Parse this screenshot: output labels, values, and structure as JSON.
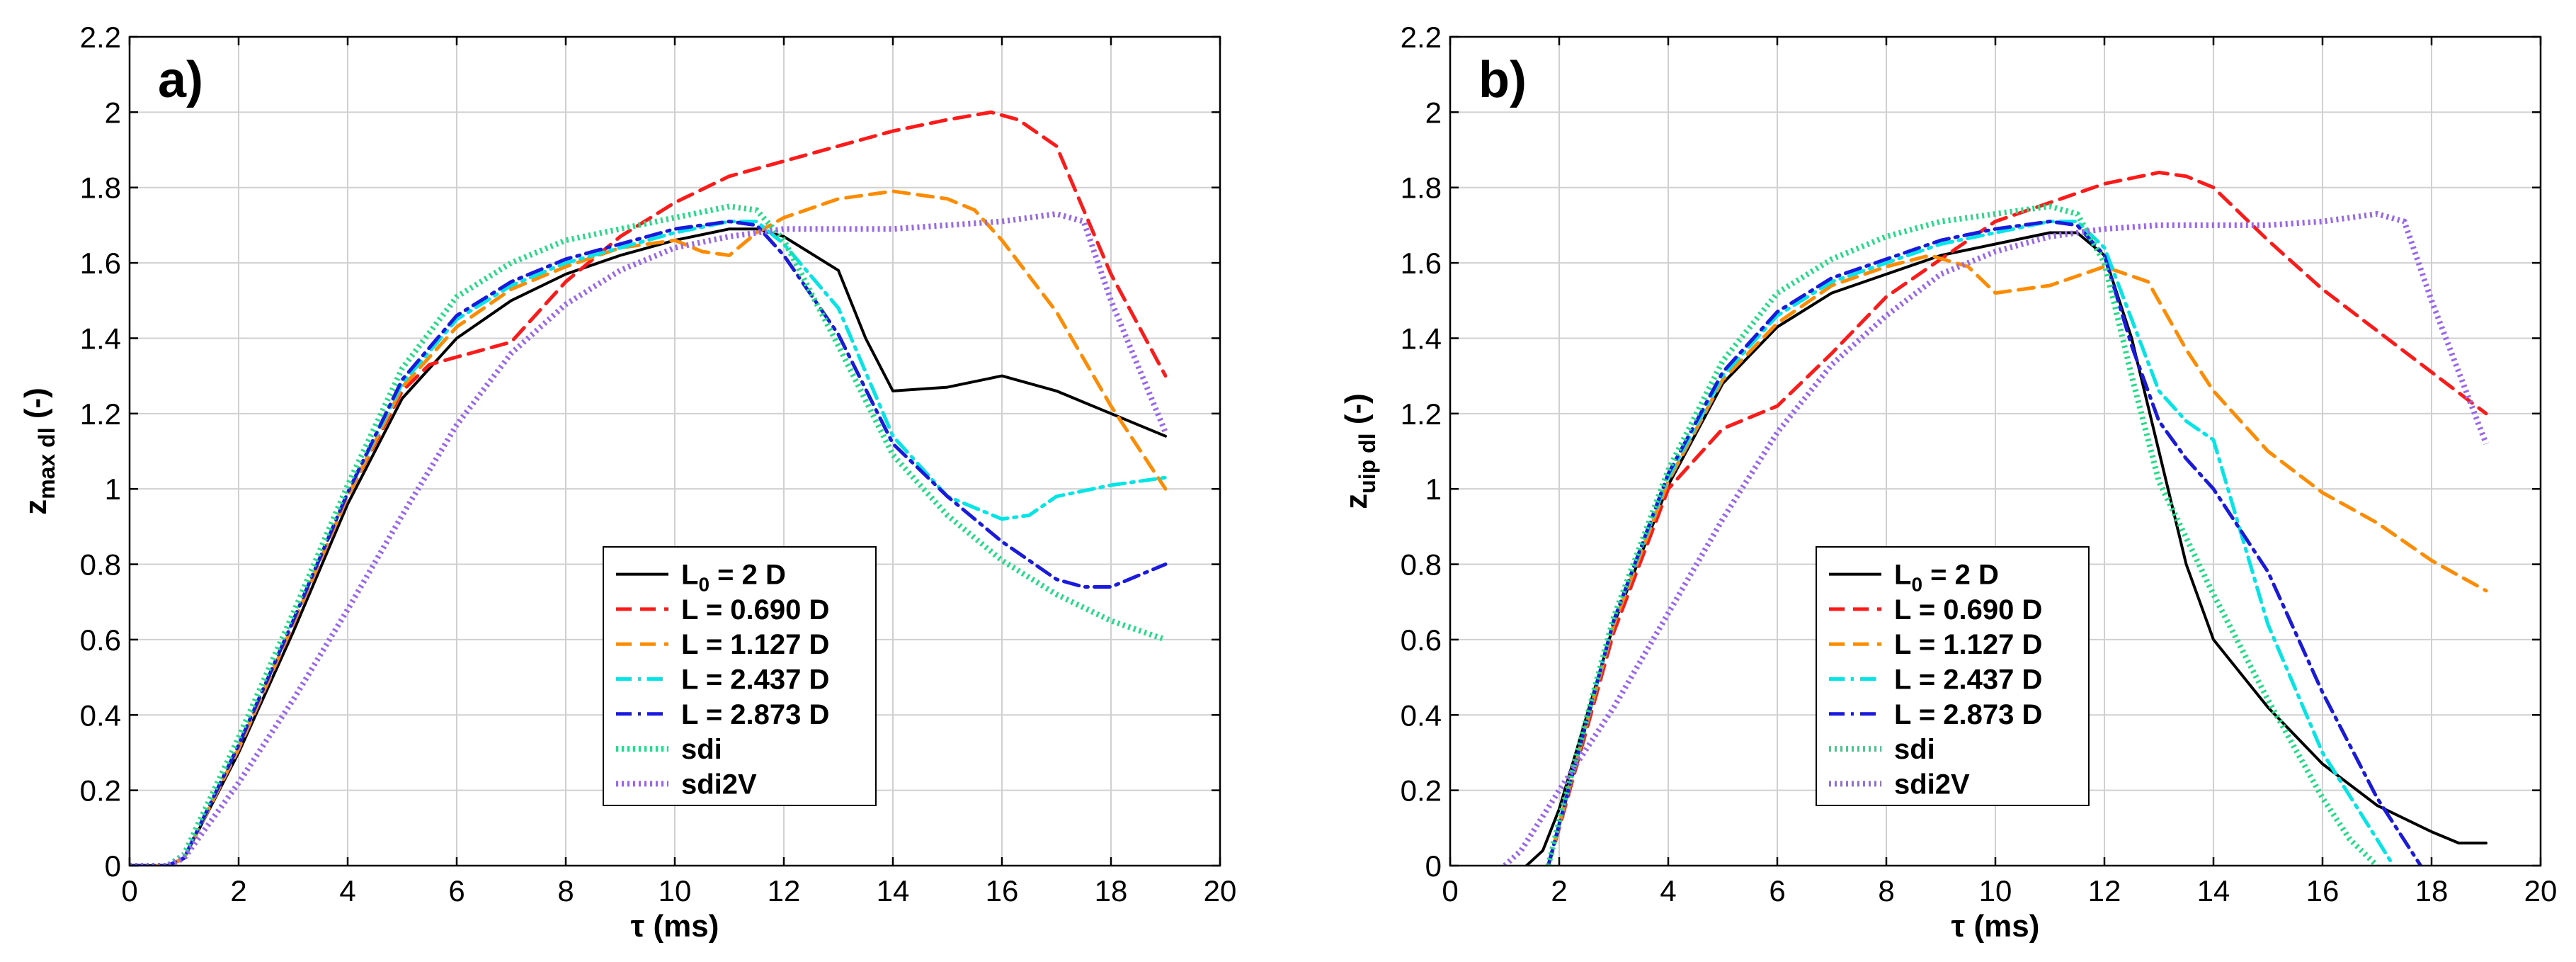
{
  "chart_data": [
    {
      "type": "line",
      "panel_label": "a)",
      "xlabel": "τ (ms)",
      "ylabel_main": "z",
      "ylabel_sub": "max dl",
      "ylabel_suffix": " (-)",
      "xlim": [
        0,
        20
      ],
      "ylim": [
        0,
        2.2
      ],
      "xticks": [
        "0",
        "2",
        "4",
        "6",
        "8",
        "10",
        "12",
        "14",
        "16",
        "18",
        "20"
      ],
      "yticks": [
        "0",
        "0.2",
        "0.4",
        "0.6",
        "0.8",
        "1",
        "1.2",
        "1.4",
        "1.6",
        "1.8",
        "2",
        "2.2"
      ],
      "grid": true,
      "legend_position": "bottom-center",
      "series": [
        {
          "name": "L0 = 2 D",
          "label_main": "L",
          "label_sub": "0",
          "label_rest": " = 2 D",
          "color": "#000000",
          "dash": "solid",
          "x": [
            0,
            0.7,
            1,
            2,
            3,
            4,
            5,
            6,
            7,
            8,
            9,
            10,
            11,
            11.5,
            12,
            13,
            13.5,
            14,
            15,
            16,
            17,
            18,
            19
          ],
          "y": [
            0,
            0,
            0.02,
            0.3,
            0.62,
            0.96,
            1.24,
            1.4,
            1.5,
            1.57,
            1.62,
            1.66,
            1.69,
            1.69,
            1.67,
            1.58,
            1.4,
            1.26,
            1.27,
            1.3,
            1.26,
            1.2,
            1.14
          ]
        },
        {
          "name": "L = 0.690 D",
          "label_main": "L = 0.690 D",
          "label_sub": "",
          "label_rest": "",
          "color": "#ff1a1a",
          "dash": "dashed",
          "x": [
            0,
            0.7,
            1,
            2,
            3,
            4,
            5,
            5.5,
            6,
            7,
            8,
            9,
            10,
            11,
            12,
            13,
            14,
            15,
            15.8,
            16.3,
            17,
            18,
            19
          ],
          "y": [
            0,
            0,
            0.02,
            0.31,
            0.64,
            0.98,
            1.26,
            1.33,
            1.35,
            1.39,
            1.55,
            1.67,
            1.76,
            1.83,
            1.87,
            1.91,
            1.95,
            1.98,
            2.0,
            1.98,
            1.91,
            1.57,
            1.3
          ]
        },
        {
          "name": "L = 1.127 D",
          "label_main": "L = 1.127 D",
          "label_sub": "",
          "label_rest": "",
          "color": "#ff8c00",
          "dash": "dashed",
          "x": [
            0,
            0.7,
            1,
            2,
            3,
            4,
            5,
            6,
            7,
            8,
            9,
            10,
            10.5,
            11,
            11.5,
            12,
            13,
            14,
            15,
            15.5,
            16,
            17,
            18,
            19
          ],
          "y": [
            0,
            0,
            0.02,
            0.31,
            0.64,
            0.98,
            1.27,
            1.43,
            1.53,
            1.59,
            1.64,
            1.66,
            1.63,
            1.62,
            1.68,
            1.72,
            1.77,
            1.79,
            1.77,
            1.74,
            1.66,
            1.47,
            1.22,
            1.0
          ]
        },
        {
          "name": "L = 2.437 D",
          "label_main": "L = 2.437 D",
          "label_sub": "",
          "label_rest": "",
          "color": "#00e5e5",
          "dash": "dashdot",
          "x": [
            0,
            0.7,
            1,
            2,
            3,
            4,
            5,
            6,
            7,
            8,
            9,
            10,
            11,
            11.5,
            12,
            13,
            14,
            15,
            16,
            16.5,
            17,
            18,
            19
          ],
          "y": [
            0,
            0,
            0.02,
            0.32,
            0.65,
            0.99,
            1.28,
            1.45,
            1.54,
            1.6,
            1.64,
            1.68,
            1.71,
            1.71,
            1.65,
            1.48,
            1.14,
            0.98,
            0.92,
            0.93,
            0.98,
            1.01,
            1.03
          ]
        },
        {
          "name": "L = 2.873 D",
          "label_main": "L = 2.873 D",
          "label_sub": "",
          "label_rest": "",
          "color": "#1a1adf",
          "dash": "dashdot",
          "x": [
            0,
            0.7,
            1,
            2,
            3,
            4,
            5,
            6,
            7,
            8,
            9,
            10,
            11,
            11.5,
            12,
            13,
            14,
            15,
            16,
            17,
            17.5,
            18,
            19
          ],
          "y": [
            0,
            0,
            0.02,
            0.32,
            0.65,
            0.99,
            1.29,
            1.46,
            1.55,
            1.61,
            1.65,
            1.69,
            1.71,
            1.7,
            1.62,
            1.41,
            1.12,
            0.98,
            0.86,
            0.76,
            0.74,
            0.74,
            0.8
          ]
        },
        {
          "name": "sdi",
          "label_main": "sdi",
          "label_sub": "",
          "label_rest": "",
          "color": "#22dd88",
          "dash": "dotted",
          "x": [
            0,
            0.7,
            1,
            2,
            3,
            4,
            5,
            6,
            7,
            8,
            9,
            10,
            11,
            11.5,
            12,
            13,
            14,
            15,
            16,
            17,
            18,
            19
          ],
          "y": [
            0,
            0,
            0.03,
            0.34,
            0.67,
            1.01,
            1.32,
            1.51,
            1.6,
            1.66,
            1.69,
            1.72,
            1.75,
            1.74,
            1.66,
            1.38,
            1.09,
            0.93,
            0.81,
            0.72,
            0.65,
            0.6
          ]
        },
        {
          "name": "sdi2V",
          "label_main": "sdi2V",
          "label_sub": "",
          "label_rest": "",
          "color": "#9966ee",
          "dash": "dotted",
          "x": [
            0,
            0.7,
            1,
            2,
            3,
            4,
            5,
            6,
            7,
            8,
            9,
            10,
            11,
            12,
            13,
            14,
            15,
            16,
            17,
            17.5,
            18,
            19
          ],
          "y": [
            0,
            0,
            0.02,
            0.22,
            0.44,
            0.68,
            0.93,
            1.17,
            1.36,
            1.49,
            1.58,
            1.64,
            1.67,
            1.69,
            1.69,
            1.69,
            1.7,
            1.71,
            1.73,
            1.71,
            1.5,
            1.15
          ]
        }
      ]
    },
    {
      "type": "line",
      "panel_label": "b)",
      "xlabel": "τ (ms)",
      "ylabel_main": "z",
      "ylabel_sub": "uip dl",
      "ylabel_suffix": " (-)",
      "xlim": [
        0,
        20
      ],
      "ylim": [
        0,
        2.2
      ],
      "xticks": [
        "0",
        "2",
        "4",
        "6",
        "8",
        "10",
        "12",
        "14",
        "16",
        "18",
        "20"
      ],
      "yticks": [
        "0",
        "0.2",
        "0.4",
        "0.6",
        "0.8",
        "1",
        "1.2",
        "1.4",
        "1.6",
        "1.8",
        "2",
        "2.2"
      ],
      "grid": true,
      "legend_position": "bottom-right",
      "series": [
        {
          "name": "L0 = 2 D",
          "label_main": "L",
          "label_sub": "0",
          "label_rest": " = 2 D",
          "color": "#000000",
          "dash": "solid",
          "x": [
            1.4,
            1.7,
            2,
            3,
            4,
            5,
            6,
            7,
            8,
            9,
            10,
            11,
            11.5,
            12,
            12.5,
            13,
            13.5,
            14,
            15,
            16,
            17,
            18,
            18.5,
            19
          ],
          "y": [
            0,
            0.04,
            0.15,
            0.64,
            1.01,
            1.28,
            1.43,
            1.52,
            1.57,
            1.62,
            1.65,
            1.68,
            1.68,
            1.62,
            1.4,
            1.1,
            0.8,
            0.6,
            0.42,
            0.27,
            0.16,
            0.09,
            0.06,
            0.06
          ]
        },
        {
          "name": "L = 0.690 D",
          "label_main": "L = 0.690 D",
          "label_sub": "",
          "label_rest": "",
          "color": "#ff1a1a",
          "dash": "dashed",
          "x": [
            1.8,
            2,
            3,
            4,
            5,
            6,
            7,
            8,
            9,
            10,
            11,
            12,
            13,
            13.5,
            14,
            15,
            16,
            17,
            18,
            19
          ],
          "y": [
            0,
            0.1,
            0.62,
            1.0,
            1.16,
            1.22,
            1.36,
            1.51,
            1.61,
            1.71,
            1.76,
            1.81,
            1.84,
            1.83,
            1.8,
            1.66,
            1.53,
            1.42,
            1.31,
            1.2
          ]
        },
        {
          "name": "L = 1.127 D",
          "label_main": "L = 1.127 D",
          "label_sub": "",
          "label_rest": "",
          "color": "#ff8c00",
          "dash": "dashed",
          "x": [
            1.8,
            2,
            3,
            4,
            5,
            6,
            7,
            8,
            8.8,
            9.5,
            10,
            11,
            12,
            12.8,
            13.5,
            14,
            15,
            16,
            17,
            18,
            19
          ],
          "y": [
            0,
            0.11,
            0.64,
            1.02,
            1.29,
            1.44,
            1.54,
            1.59,
            1.62,
            1.59,
            1.52,
            1.54,
            1.59,
            1.55,
            1.37,
            1.26,
            1.1,
            0.99,
            0.91,
            0.81,
            0.73
          ]
        },
        {
          "name": "L = 2.437 D",
          "label_main": "L = 2.437 D",
          "label_sub": "",
          "label_rest": "",
          "color": "#00e5e5",
          "dash": "dashdot",
          "x": [
            1.8,
            2,
            3,
            4,
            5,
            6,
            7,
            8,
            9,
            10,
            11,
            11.5,
            12,
            12.5,
            13,
            13.5,
            14,
            15,
            16,
            17,
            17.3
          ],
          "y": [
            0,
            0.11,
            0.65,
            1.03,
            1.3,
            1.46,
            1.55,
            1.6,
            1.65,
            1.68,
            1.71,
            1.71,
            1.64,
            1.45,
            1.26,
            1.18,
            1.13,
            0.64,
            0.3,
            0.07,
            0
          ]
        },
        {
          "name": "L = 2.873 D",
          "label_main": "L = 2.873 D",
          "label_sub": "",
          "label_rest": "",
          "color": "#1a1adf",
          "dash": "dashdot",
          "x": [
            1.8,
            2,
            3,
            4,
            5,
            6,
            7,
            8,
            9,
            10,
            11,
            11.5,
            12,
            12.5,
            13,
            13.5,
            14,
            15,
            16,
            17,
            17.8
          ],
          "y": [
            0,
            0.11,
            0.65,
            1.04,
            1.31,
            1.47,
            1.56,
            1.61,
            1.66,
            1.69,
            1.71,
            1.7,
            1.62,
            1.38,
            1.18,
            1.08,
            1.0,
            0.78,
            0.46,
            0.18,
            0
          ]
        },
        {
          "name": "sdi",
          "label_main": "sdi",
          "label_sub": "",
          "label_rest": "",
          "color": "#22dd88",
          "dash": "dotted",
          "x": [
            1.8,
            2,
            3,
            4,
            5,
            6,
            7,
            8,
            9,
            10,
            11,
            11.5,
            12,
            12.5,
            13,
            14,
            15,
            16,
            16.5,
            17
          ],
          "y": [
            0,
            0.12,
            0.66,
            1.05,
            1.34,
            1.52,
            1.61,
            1.67,
            1.71,
            1.73,
            1.75,
            1.73,
            1.6,
            1.3,
            1.02,
            0.72,
            0.44,
            0.18,
            0.07,
            0
          ]
        },
        {
          "name": "sdi2V",
          "label_main": "sdi2V",
          "label_sub": "",
          "label_rest": "",
          "color": "#9966ee",
          "dash": "dotted",
          "x": [
            1.0,
            1.3,
            2,
            3,
            4,
            5,
            6,
            7,
            8,
            9,
            10,
            11,
            12,
            13,
            14,
            15,
            16,
            16.5,
            17,
            17.5,
            18,
            19
          ],
          "y": [
            0,
            0.04,
            0.2,
            0.42,
            0.67,
            0.92,
            1.15,
            1.33,
            1.46,
            1.57,
            1.63,
            1.67,
            1.69,
            1.7,
            1.7,
            1.7,
            1.71,
            1.72,
            1.73,
            1.71,
            1.5,
            1.12
          ]
        }
      ]
    }
  ]
}
